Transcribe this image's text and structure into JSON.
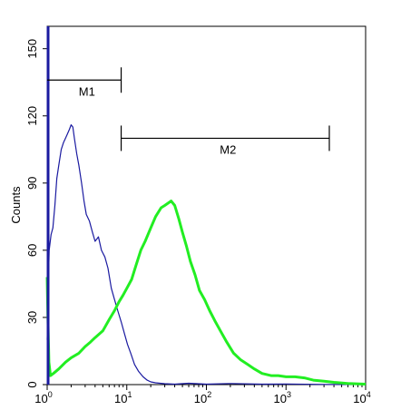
{
  "chart_data": {
    "type": "line",
    "title": "",
    "xlabel": "",
    "ylabel": "Counts",
    "xscale": "log",
    "xlim": [
      1,
      10000
    ],
    "ylim": [
      0,
      160
    ],
    "x_ticks": [
      {
        "base": "10",
        "exp": "0",
        "value": 1
      },
      {
        "base": "10",
        "exp": "1",
        "value": 10
      },
      {
        "base": "10",
        "exp": "2",
        "value": 100
      },
      {
        "base": "10",
        "exp": "3",
        "value": 1000
      },
      {
        "base": "10",
        "exp": "4",
        "value": 10000
      }
    ],
    "y_ticks": [
      "0",
      "30",
      "60",
      "90",
      "120",
      "150"
    ],
    "grid": false,
    "series": [
      {
        "color": "#1a1aa0",
        "x": [
          1.0,
          1.06,
          1.12,
          1.18,
          1.25,
          1.32,
          1.4,
          1.5,
          1.6,
          1.7,
          1.8,
          1.9,
          2.0,
          2.1,
          2.2,
          2.35,
          2.5,
          2.7,
          2.9,
          3.1,
          3.4,
          3.7,
          4.0,
          4.4,
          4.8,
          5.3,
          5.8,
          6.4,
          7.0,
          7.7,
          8.5,
          9.3,
          10.2,
          11.2,
          12.5,
          14,
          16,
          18,
          20,
          23,
          26,
          30,
          40,
          60,
          100,
          200,
          500,
          1000,
          3000,
          10000
        ],
        "values": [
          20,
          60,
          67,
          70,
          80,
          92,
          98,
          105,
          108,
          110,
          112,
          114,
          116,
          115,
          110,
          103,
          98,
          90,
          82,
          76,
          73,
          68,
          64,
          66,
          60,
          57,
          52,
          43,
          38,
          33,
          28,
          23,
          18,
          14,
          9,
          6,
          3.5,
          2,
          1.2,
          0.8,
          0.6,
          0.4,
          0.2,
          0.6,
          0.2,
          0.5,
          0.2,
          0.3,
          0.1,
          0.0
        ]
      },
      {
        "color": "#22ee22",
        "x": [
          1.0,
          1.02,
          1.05,
          1.1,
          1.2,
          1.4,
          1.7,
          2.0,
          2.5,
          3.0,
          3.5,
          4.0,
          5.0,
          6.0,
          7.0,
          8.0,
          9.0,
          10.0,
          11.5,
          13,
          15,
          17,
          20,
          23,
          27,
          30,
          33,
          36,
          40,
          45,
          50,
          56,
          63,
          72,
          82,
          95,
          110,
          130,
          150,
          180,
          220,
          270,
          330,
          400,
          500,
          650,
          800,
          1000,
          1300,
          1700,
          2200,
          3000,
          4000,
          6000,
          10000
        ],
        "values": [
          48,
          30,
          10,
          4,
          5,
          7,
          10,
          12,
          14,
          17,
          19,
          21,
          24,
          29,
          33,
          37,
          40,
          43,
          47,
          53,
          60,
          64,
          70,
          75,
          79,
          80,
          81,
          82,
          80,
          74,
          68,
          62,
          55,
          49,
          42,
          38,
          33,
          28,
          24,
          19,
          14,
          11,
          9,
          7,
          5,
          4,
          4,
          3.5,
          3.5,
          3,
          2,
          1.5,
          1,
          0.5,
          0.2
        ]
      }
    ],
    "markers": [
      {
        "label": "M1",
        "x_start": 1,
        "x_end": 8.5,
        "y": 136
      },
      {
        "label": "M2",
        "x_start": 8.5,
        "x_end": 3500,
        "y": 110
      }
    ]
  }
}
